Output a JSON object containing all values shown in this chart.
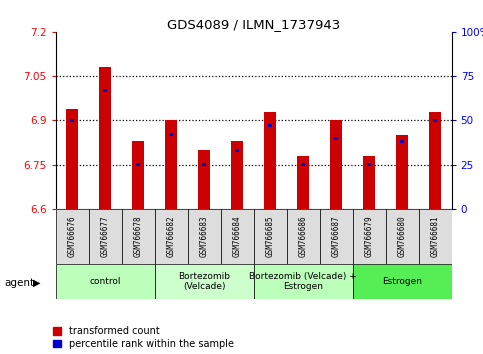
{
  "title": "GDS4089 / ILMN_1737943",
  "samples": [
    "GSM766676",
    "GSM766677",
    "GSM766678",
    "GSM766682",
    "GSM766683",
    "GSM766684",
    "GSM766685",
    "GSM766686",
    "GSM766687",
    "GSM766679",
    "GSM766680",
    "GSM766681"
  ],
  "transformed_counts": [
    6.94,
    7.08,
    6.83,
    6.9,
    6.8,
    6.83,
    6.93,
    6.78,
    6.9,
    6.78,
    6.85,
    6.93
  ],
  "percentile_ranks": [
    50,
    67,
    25,
    42,
    25,
    33,
    47,
    25,
    40,
    25,
    38,
    50
  ],
  "y_min": 6.6,
  "y_max": 7.2,
  "y_ticks": [
    6.6,
    6.75,
    6.9,
    7.05,
    7.2
  ],
  "right_y_ticks": [
    0,
    25,
    50,
    75,
    100
  ],
  "right_y_labels": [
    "0",
    "25",
    "50",
    "75",
    "100%"
  ],
  "bar_color": "#CC0000",
  "blue_color": "#0000CC",
  "groups": [
    {
      "label": "control",
      "start": 0,
      "end": 3,
      "color": "#BBFFBB"
    },
    {
      "label": "Bortezomib\n(Velcade)",
      "start": 3,
      "end": 6,
      "color": "#CCFFCC"
    },
    {
      "label": "Bortezomib (Velcade) +\nEstrogen",
      "start": 6,
      "end": 9,
      "color": "#BBFFBB"
    },
    {
      "label": "Estrogen",
      "start": 9,
      "end": 12,
      "color": "#55EE55"
    }
  ],
  "legend_red_label": "transformed count",
  "legend_blue_label": "percentile rank within the sample",
  "agent_label": "agent",
  "bar_width": 0.35,
  "blue_bar_width": 0.12
}
